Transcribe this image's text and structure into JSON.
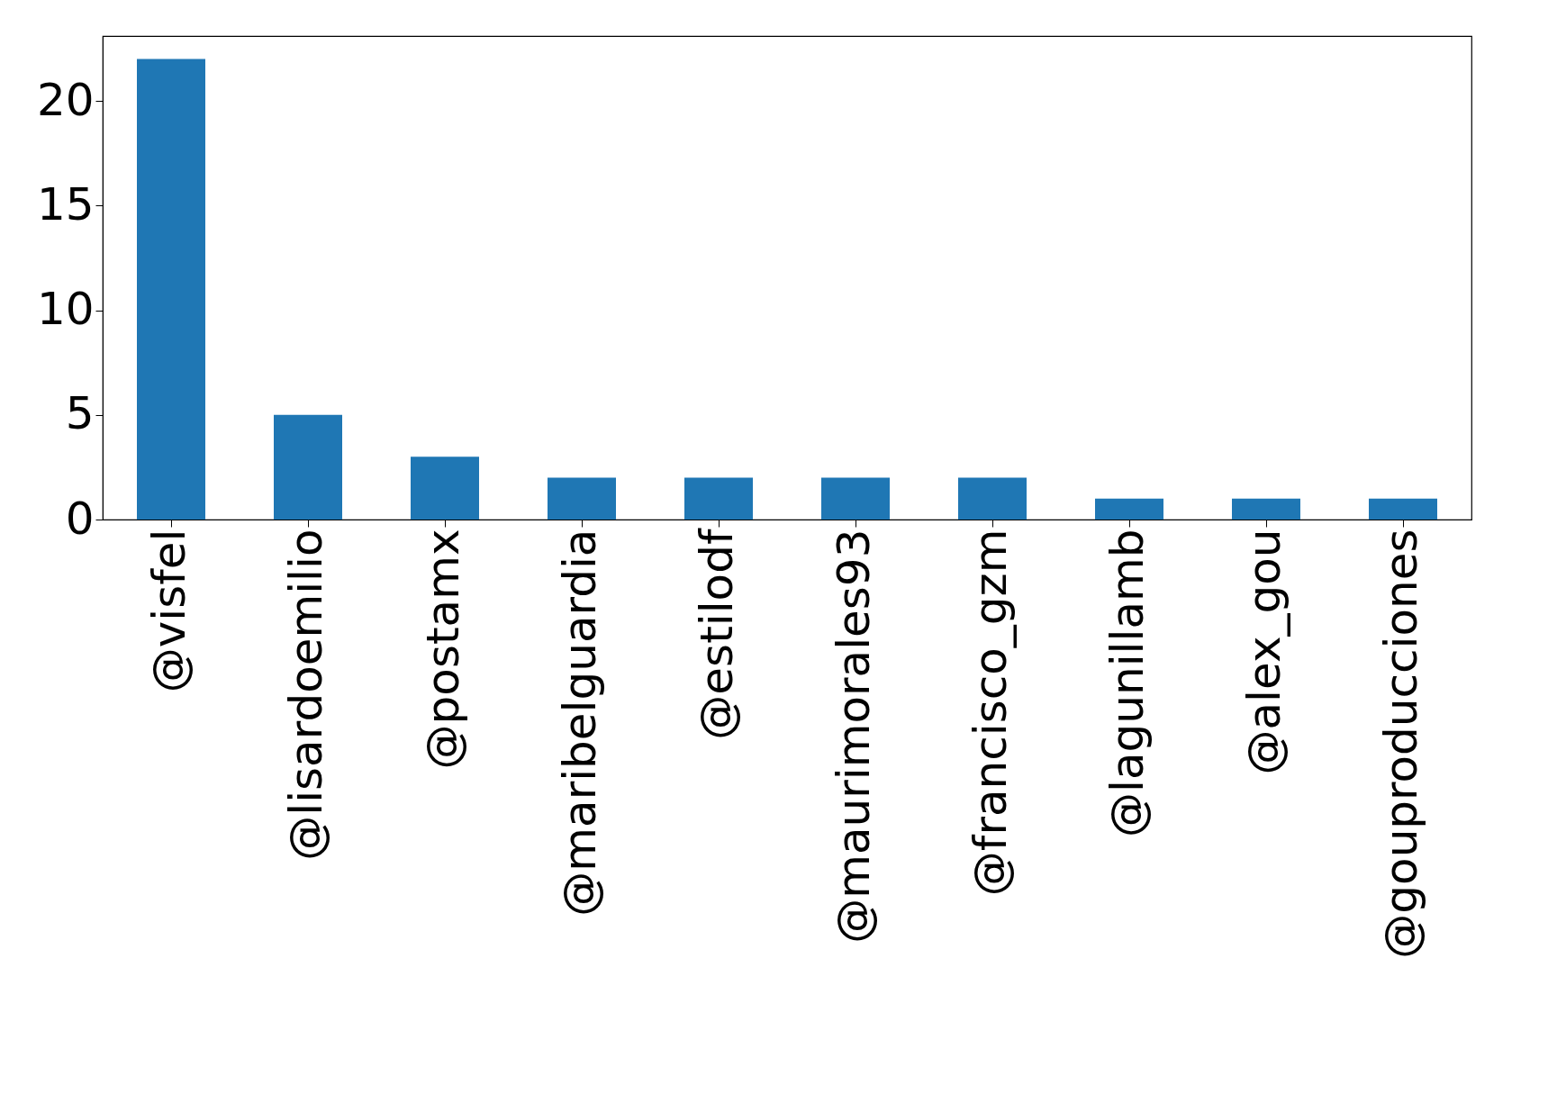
{
  "chart_data": {
    "type": "bar",
    "categories": [
      "@visfel",
      "@lisardoemilio",
      "@postamx",
      "@maribelguardia",
      "@estilodf",
      "@maurimorales93",
      "@francisco_gzm",
      "@lagunillamb",
      "@alex_gou",
      "@gouproducciones"
    ],
    "values": [
      22,
      5,
      3,
      2,
      2,
      2,
      2,
      1,
      1,
      1
    ],
    "color": "#1f77b4",
    "ylim": [
      0,
      23.1
    ],
    "yticks": [
      0,
      5,
      10,
      15,
      20
    ],
    "grid": false
  }
}
